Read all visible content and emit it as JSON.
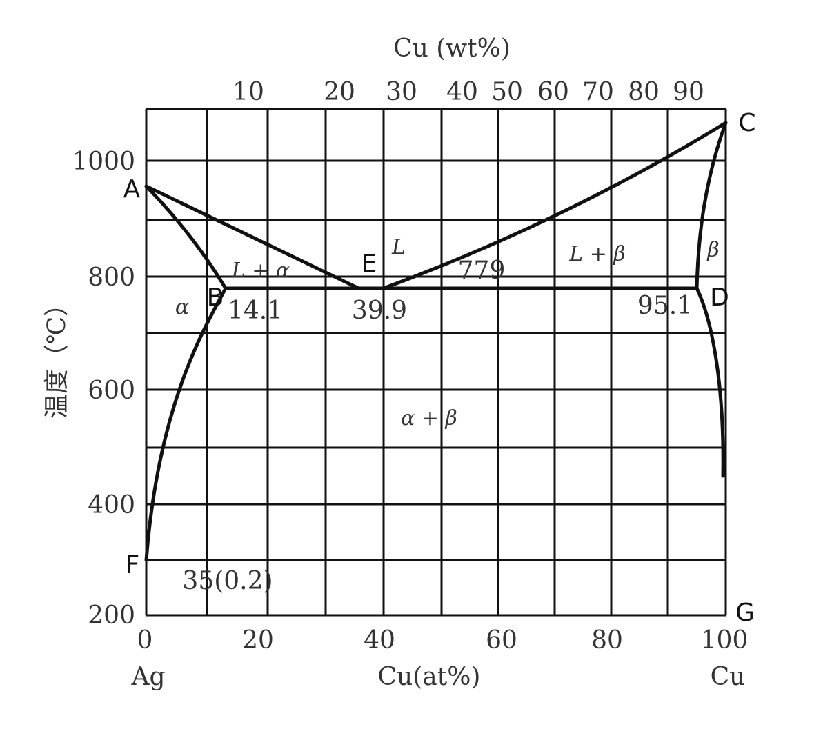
{
  "top_axis": {
    "title": "Cu (wt%)",
    "ticks": [
      "10",
      "20",
      "30",
      "40",
      "50",
      "60",
      "70",
      "80",
      "90"
    ]
  },
  "bottom_axis": {
    "title": "Cu(at%)",
    "ticks": [
      "0",
      "20",
      "40",
      "60",
      "80",
      "100"
    ],
    "left_end": "Ag",
    "right_end": "Cu"
  },
  "left_axis": {
    "title": "温度（℃）",
    "ticks": [
      "1000",
      "800",
      "600",
      "400",
      "200"
    ]
  },
  "point_labels": {
    "A": "A",
    "B": "B",
    "C": "C",
    "D": "D",
    "E": "E",
    "F": "F",
    "G": "G"
  },
  "phase_labels": {
    "liquid": "L",
    "l_alpha": "L + α",
    "l_beta": "L + β",
    "alpha": "α",
    "beta": "β",
    "alpha_beta": "α + β"
  },
  "annotations": {
    "eutectic_temp": "779",
    "alpha_limit": "14.1",
    "eutectic_comp": "39.9",
    "beta_limit": "95.1",
    "low_temp_solubility": "35(0.2)"
  },
  "colors": {
    "ink": "#111111",
    "background": "#ffffff"
  }
}
